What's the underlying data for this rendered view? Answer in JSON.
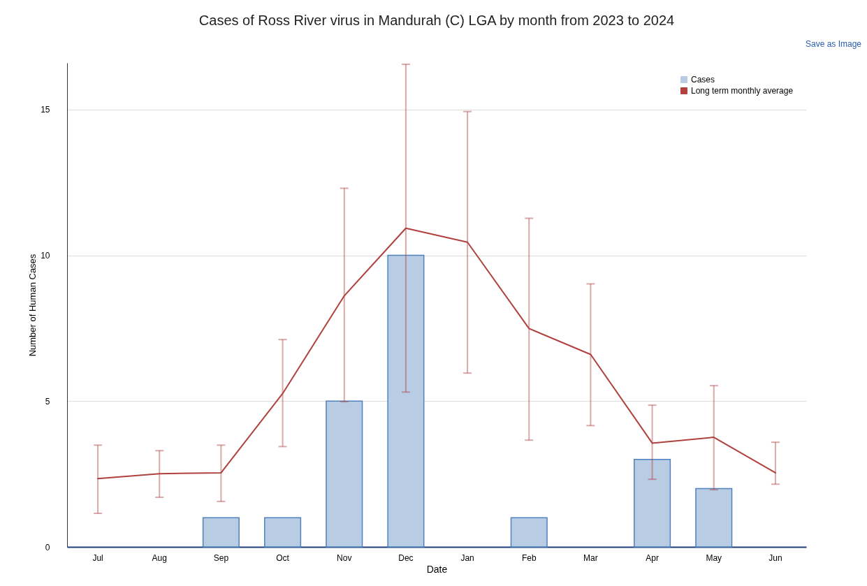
{
  "chart_data": {
    "type": "bar",
    "title": "Cases of Ross River virus in Mandurah (C) LGA by month from 2023 to 2024",
    "xlabel": "Date",
    "ylabel": "Number of Human Cases",
    "categories": [
      "Jul",
      "Aug",
      "Sep",
      "Oct",
      "Nov",
      "Dec",
      "Jan",
      "Feb",
      "Mar",
      "Apr",
      "May",
      "Jun"
    ],
    "series": [
      {
        "name": "Cases",
        "color": "#b8cce4",
        "values": [
          0,
          0,
          1,
          1,
          5,
          10,
          0,
          1,
          0,
          3,
          2,
          0
        ]
      },
      {
        "name": "Long term monthly average",
        "type": "line",
        "color": "#b0413e",
        "values": [
          2.34,
          2.51,
          2.54,
          5.26,
          8.61,
          10.93,
          10.45,
          7.49,
          6.6,
          3.56,
          3.76,
          2.54
        ],
        "errors": [
          [
            1.15,
            3.49
          ],
          [
            1.7,
            3.3
          ],
          [
            1.56,
            3.49
          ],
          [
            3.44,
            7.11
          ],
          [
            4.98,
            12.3
          ],
          [
            5.31,
            16.55
          ],
          [
            5.96,
            14.93
          ],
          [
            3.66,
            11.27
          ],
          [
            4.16,
            9.02
          ],
          [
            2.32,
            4.86
          ],
          [
            1.96,
            5.53
          ],
          [
            2.15,
            3.59
          ]
        ]
      }
    ],
    "ylim": [
      0,
      16.6
    ],
    "yticks": [
      0,
      5,
      10,
      15
    ],
    "grid": "y",
    "legend": "top right",
    "annotations": [
      "Save as Image"
    ]
  }
}
